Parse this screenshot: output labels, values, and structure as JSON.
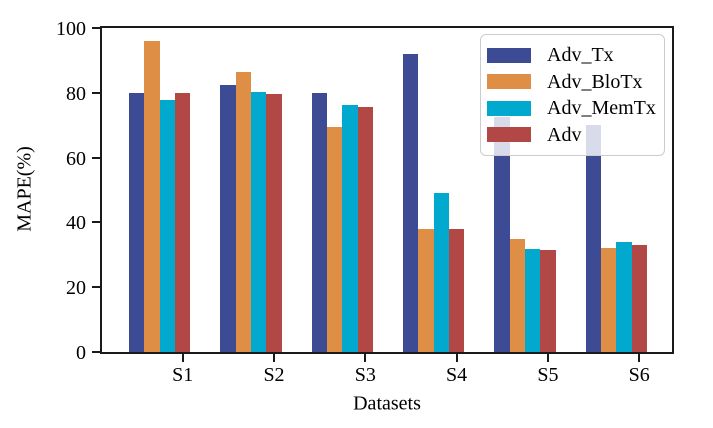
{
  "figure": {
    "background": "#ffffff",
    "spine_color": "#1a1a1a",
    "text_color": "#000000"
  },
  "chart_data": {
    "type": "bar",
    "title": "",
    "xlabel": "Datasets",
    "ylabel": "MAPE(%)",
    "categories": [
      "S1",
      "S2",
      "S3",
      "S4",
      "S5",
      "S6"
    ],
    "series": [
      {
        "name": "Adv_Tx",
        "color": "#3d4b94",
        "values": [
          79.9,
          82.5,
          79.9,
          91.9,
          72.6,
          70.0
        ]
      },
      {
        "name": "Adv_BloTx",
        "color": "#de8e45",
        "values": [
          96.0,
          86.3,
          69.3,
          37.9,
          35.0,
          32.0
        ]
      },
      {
        "name": "Adv_MemTx",
        "color": "#00a9cd",
        "values": [
          77.9,
          80.2,
          76.2,
          49.2,
          31.9,
          34.1
        ]
      },
      {
        "name": "Adv",
        "color": "#b14845",
        "values": [
          79.9,
          79.5,
          75.7,
          37.9,
          31.6,
          32.9
        ]
      }
    ],
    "ylim": [
      0,
      100
    ],
    "yticks": [
      0,
      20,
      40,
      60,
      80,
      100
    ],
    "grid": false,
    "legend_position": "upper right",
    "legend_labels": [
      "Adv_Tx",
      "Adv_BloTx",
      "Adv_MemTx",
      "Adv"
    ],
    "legend_background_alpha": 0.8
  }
}
